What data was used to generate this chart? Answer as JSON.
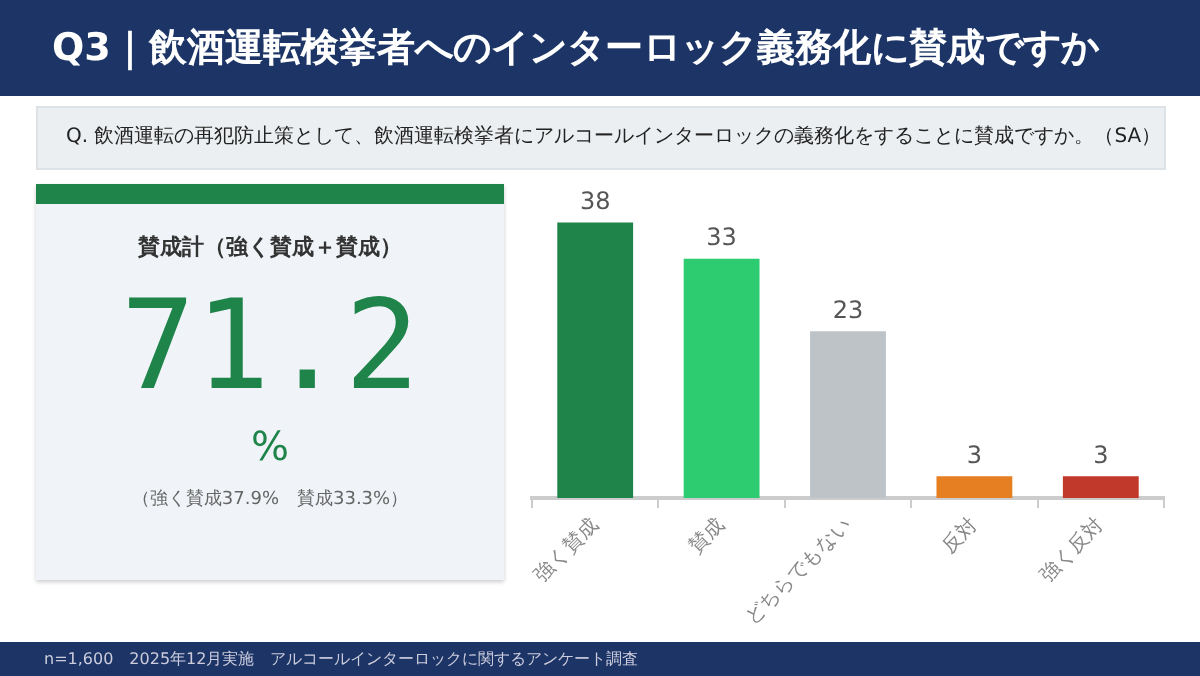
{
  "chart_data": [
    {
      "type": "other",
      "title": "Q3｜飲酒運転検挙者へのインターロック義務化に賛成ですか",
      "subtitle": "Q. 飲酒運転の再犯防止策として、飲酒運転検挙者にアルコールインターロックの義務化をすることに賛成ですか。（SA）",
      "annotations": [
        "賛成計（強く賛成＋賛成）",
        "71.2",
        "%",
        "（強く賛成37.9%　賛成33.3%）",
        "n=1,600　2025年12月実施　アルコールインターロックに関するアンケート調査"
      ]
    },
    {
      "type": "bar",
      "categories": [
        "強く賛成",
        "賛成",
        "どちらでもない",
        "反対",
        "強く反対"
      ],
      "values": [
        38,
        33,
        23,
        3,
        3
      ],
      "colors": [
        "#1e8449",
        "#2ecc71",
        "#bdc3c7",
        "#e67e22",
        "#c0392b"
      ],
      "data_labels": true
    }
  ]
}
